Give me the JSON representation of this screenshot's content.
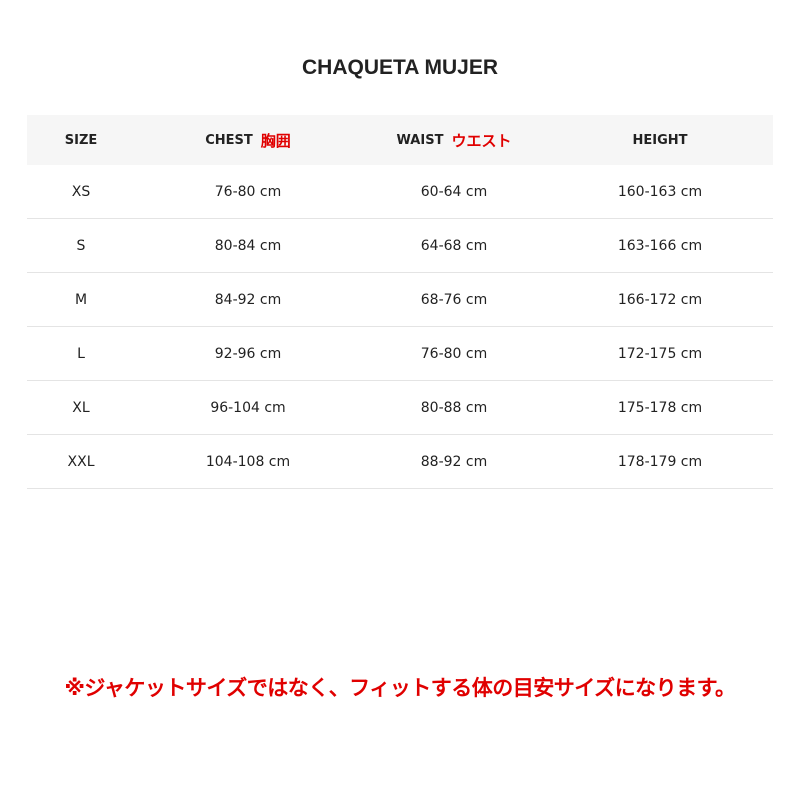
{
  "title": "CHAQUETA MUJER",
  "headers": [
    {
      "label": "SIZE",
      "jp": ""
    },
    {
      "label": "CHEST",
      "jp": "胸囲"
    },
    {
      "label": "WAIST",
      "jp": "ウエスト"
    },
    {
      "label": "HEIGHT",
      "jp": ""
    }
  ],
  "rows": [
    [
      "XS",
      "76-80 cm",
      "60-64 cm",
      "160-163 cm"
    ],
    [
      "S",
      "80-84 cm",
      "64-68 cm",
      "163-166 cm"
    ],
    [
      "M",
      "84-92 cm",
      "68-76 cm",
      "166-172 cm"
    ],
    [
      "L",
      "92-96 cm",
      "76-80 cm",
      "172-175 cm"
    ],
    [
      "XL",
      "96-104 cm",
      "80-88 cm",
      "175-178 cm"
    ],
    [
      "XXL",
      "104-108 cm",
      "88-92 cm",
      "178-179 cm"
    ]
  ],
  "note": "※ジャケットサイズではなく、フィットする体の目安サイズになります。",
  "colors": {
    "accent": "#e00000",
    "header_bg": "#f6f6f6"
  }
}
